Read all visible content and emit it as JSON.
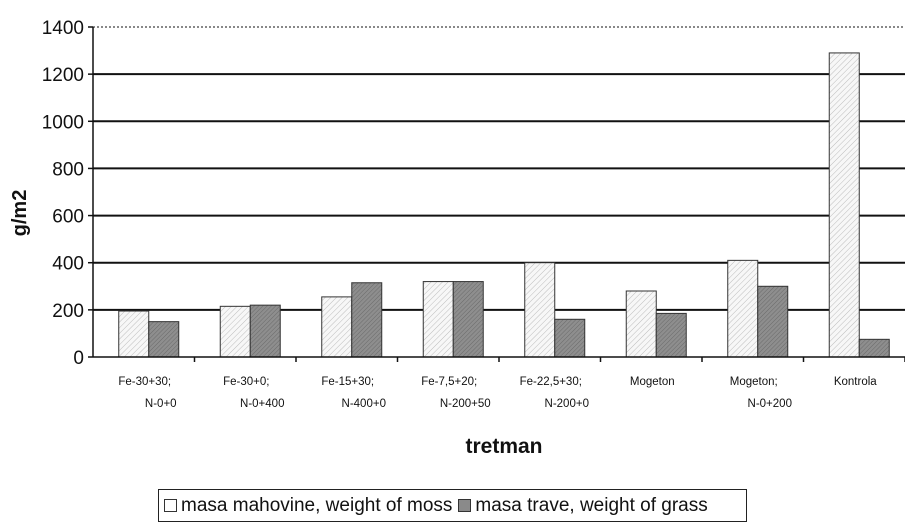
{
  "chart_data": {
    "type": "bar",
    "title": "",
    "xlabel": "tretman",
    "ylabel": "g/m2",
    "ylim": [
      0,
      1400
    ],
    "yticks": [
      0,
      200,
      400,
      600,
      800,
      1000,
      1200,
      1400
    ],
    "grid": true,
    "legend_position": "bottom",
    "categories": [
      [
        "Fe-30+30;",
        "N-0+0"
      ],
      [
        "Fe-30+0;",
        "N-0+400"
      ],
      [
        "Fe-15+30;",
        "N-400+0"
      ],
      [
        "Fe-7,5+20;",
        "N-200+50"
      ],
      [
        "Fe-22,5+30;",
        "N-200+0"
      ],
      [
        "Mogeton"
      ],
      [
        "Mogeton;",
        "N-0+200"
      ],
      [
        "Kontrola"
      ]
    ],
    "series": [
      {
        "name": "masa mahovine, weight of moss",
        "values": [
          195,
          215,
          255,
          320,
          400,
          280,
          410,
          1290
        ],
        "color": "#f2f2f2"
      },
      {
        "name": "masa trave, weight of grass",
        "values": [
          150,
          220,
          315,
          320,
          160,
          185,
          300,
          75
        ],
        "color": "#8a8a8a"
      }
    ]
  }
}
